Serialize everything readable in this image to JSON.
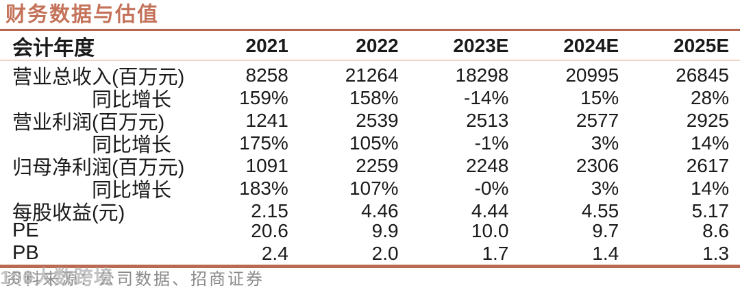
{
  "title": "财务数据与估值",
  "colors": {
    "accent_rule": "#b5684e",
    "light_rule": "#f0d2c6",
    "title_text": "#c4735a",
    "footer_text": "#8a8a8a",
    "body_text": "#1a1a1a"
  },
  "table": {
    "header": {
      "label": "会计年度",
      "years": [
        "2021",
        "2022",
        "2023E",
        "2024E",
        "2025E"
      ]
    },
    "rows": [
      {
        "label": "营业总收入(百万元)",
        "values": [
          "8258",
          "21264",
          "18298",
          "20995",
          "26845"
        ]
      },
      {
        "label": "同比增长",
        "values": [
          "159%",
          "158%",
          "-14%",
          "15%",
          "28%"
        ]
      },
      {
        "label": "营业利润(百万元)",
        "values": [
          "1241",
          "2539",
          "2513",
          "2577",
          "2925"
        ]
      },
      {
        "label": "同比增长",
        "values": [
          "175%",
          "105%",
          "-1%",
          "3%",
          "14%"
        ]
      },
      {
        "label": "归母净利润(百万元)",
        "values": [
          "1091",
          "2259",
          "2248",
          "2306",
          "2617"
        ]
      },
      {
        "label": "同比增长",
        "values": [
          "183%",
          "107%",
          "-0%",
          "3%",
          "14%"
        ]
      },
      {
        "label": "每股收益(元)",
        "values": [
          "2.15",
          "4.46",
          "4.44",
          "4.55",
          "5.17"
        ]
      },
      {
        "label": "PE",
        "values": [
          "20.6",
          "9.9",
          "10.0",
          "9.7",
          "8.6"
        ]
      },
      {
        "label": "PB",
        "values": [
          "2.4",
          "2.0",
          "1.7",
          "1.4",
          "1.3"
        ]
      }
    ]
  },
  "footer": {
    "source_text": "资料来源：公司数据、招商证券"
  },
  "watermark": {
    "text": "100大数跨境"
  }
}
